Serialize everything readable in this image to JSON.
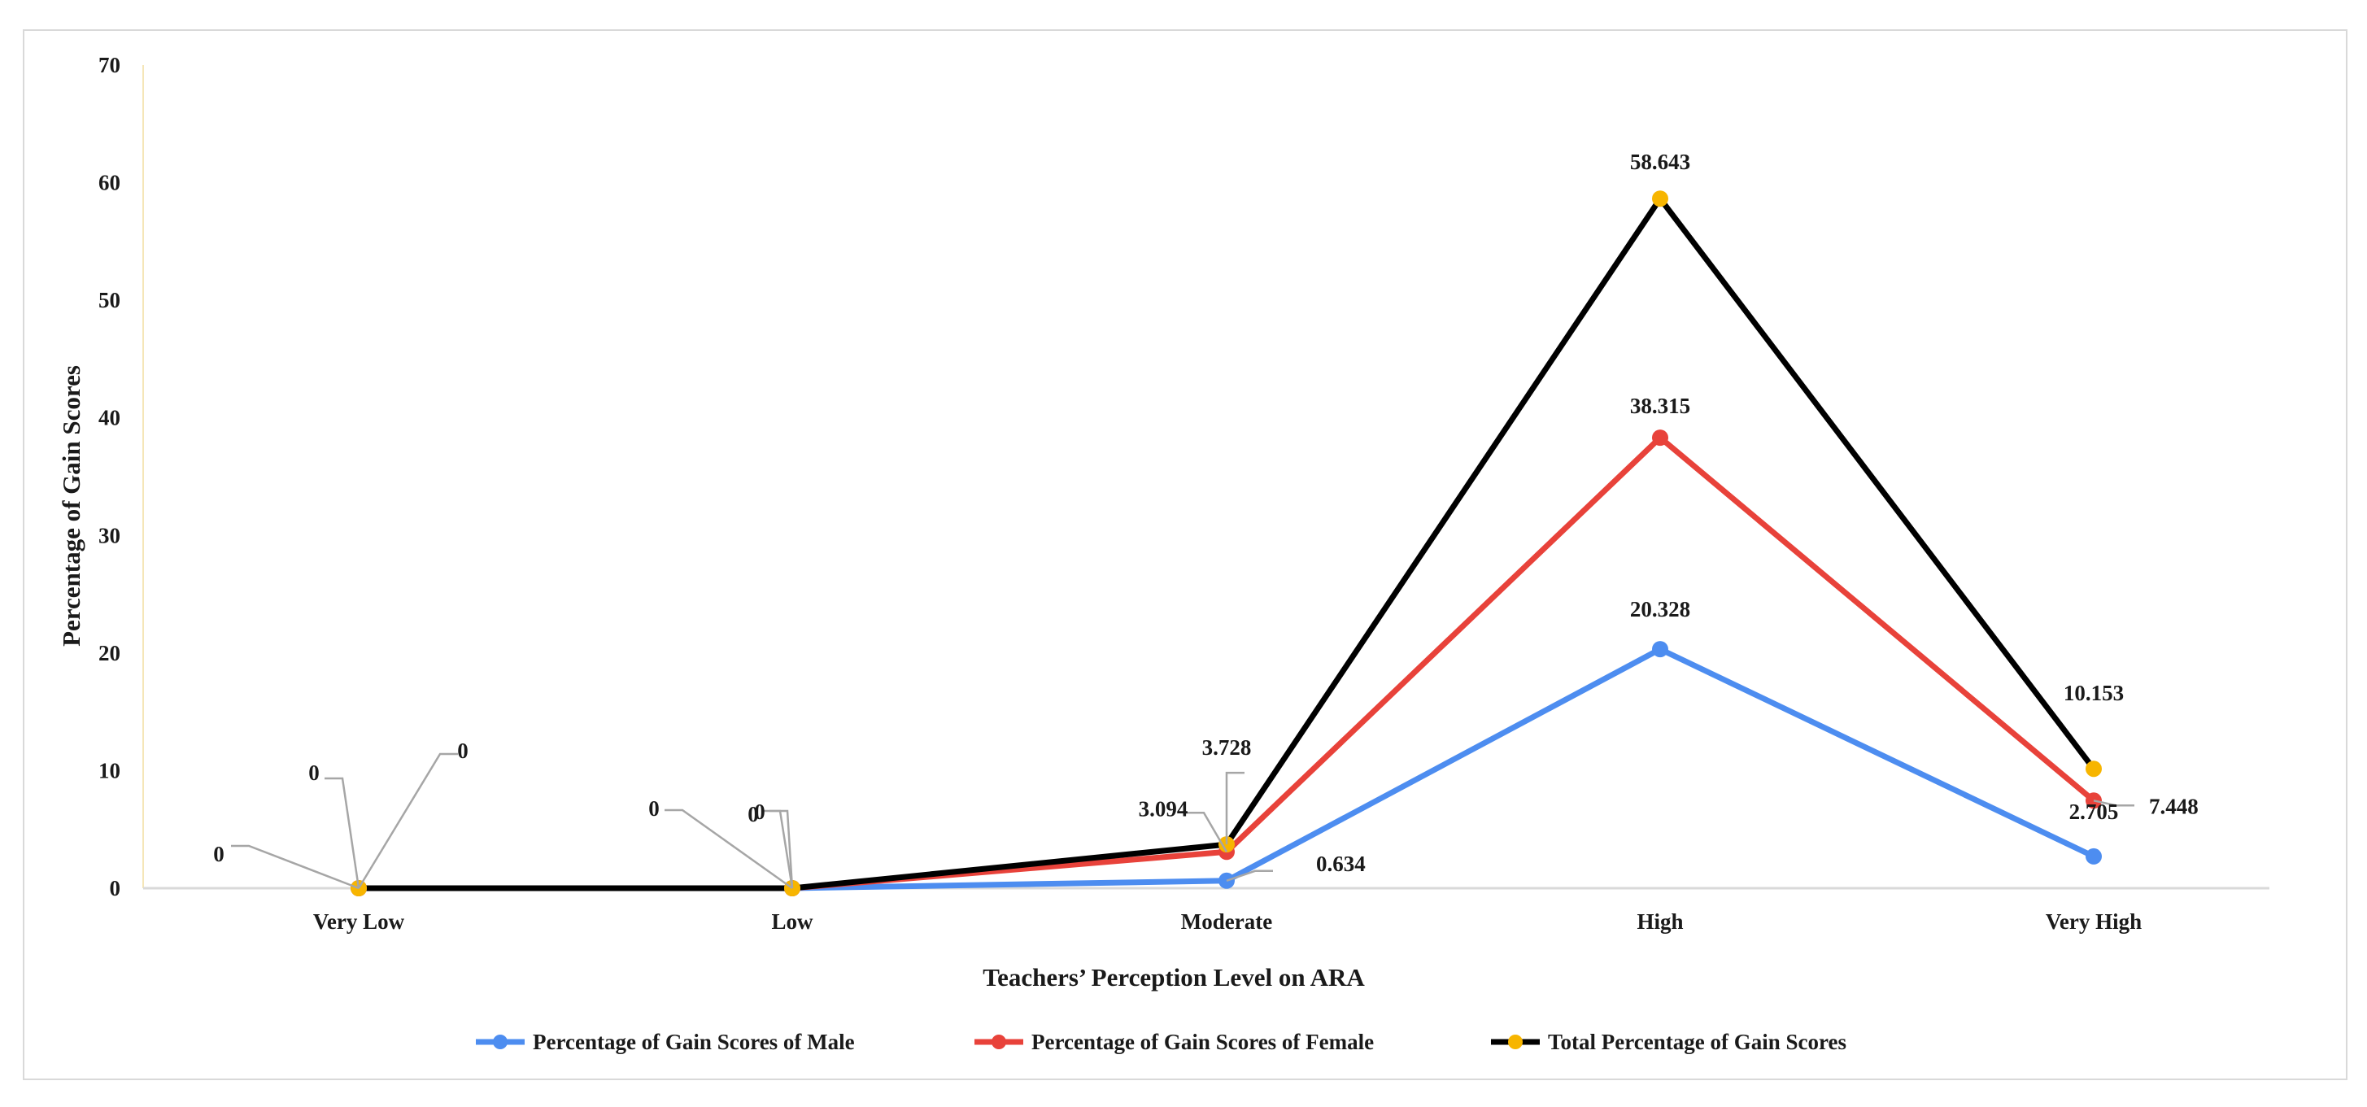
{
  "chart_data": {
    "type": "line",
    "title": "",
    "xlabel": "Teachers’ Perception Level on ARA",
    "ylabel": "Percentage of Gain Scores",
    "ylim": [
      0,
      70
    ],
    "yticks": [
      0,
      10,
      20,
      30,
      40,
      50,
      60,
      70
    ],
    "categories": [
      "Very Low",
      "Low",
      "Moderate",
      "High",
      "Very High"
    ],
    "series": [
      {
        "name": "Percentage of Gain Scores of Male",
        "color": "#4d8df0",
        "values": [
          0,
          0,
          0.634,
          20.328,
          2.705
        ],
        "labels": [
          "0",
          "0",
          "0.634",
          "20.328",
          "2.705"
        ]
      },
      {
        "name": "Percentage of Gain Scores of Female",
        "color": "#e8423a",
        "values": [
          0,
          0,
          3.094,
          38.315,
          7.448
        ],
        "labels": [
          "0",
          "0",
          "3.094",
          "38.315",
          "7.448"
        ]
      },
      {
        "name": "Total Percentage of Gain Scores",
        "color": "#000000",
        "marker_color": "#f7b500",
        "values": [
          0,
          0,
          3.728,
          58.643,
          10.153
        ],
        "labels": [
          "0",
          "0",
          "3.728",
          "58.643",
          "10.153"
        ]
      }
    ],
    "legend_position": "bottom",
    "grid": false
  }
}
